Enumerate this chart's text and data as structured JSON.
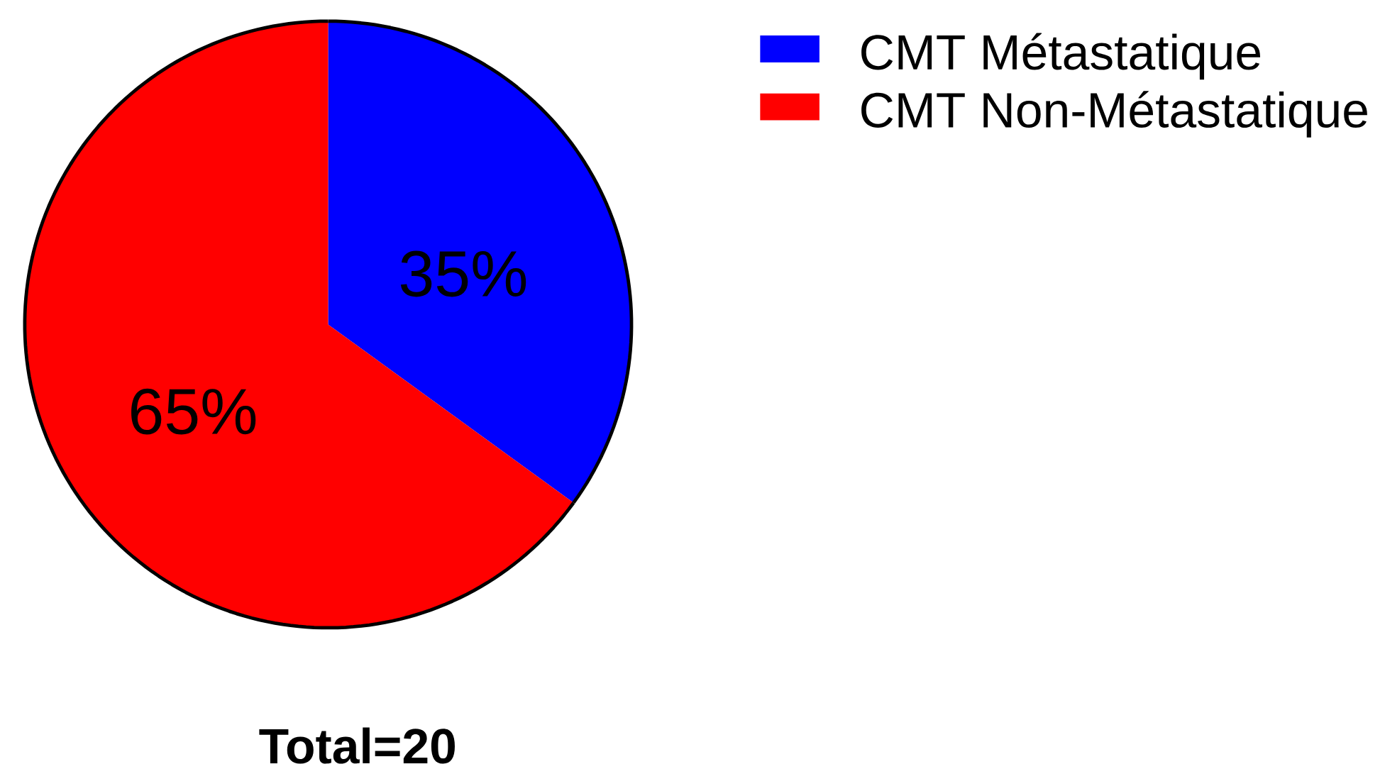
{
  "chart_data": {
    "type": "pie",
    "categories": [
      "CMT Métastatique",
      "CMT Non-Métastatique"
    ],
    "values": [
      35,
      65
    ],
    "colors": [
      "#0000ff",
      "#ff0000"
    ],
    "value_labels": [
      "35%",
      "65%"
    ],
    "legend": "top right",
    "annotations": [
      "Total=20"
    ]
  }
}
